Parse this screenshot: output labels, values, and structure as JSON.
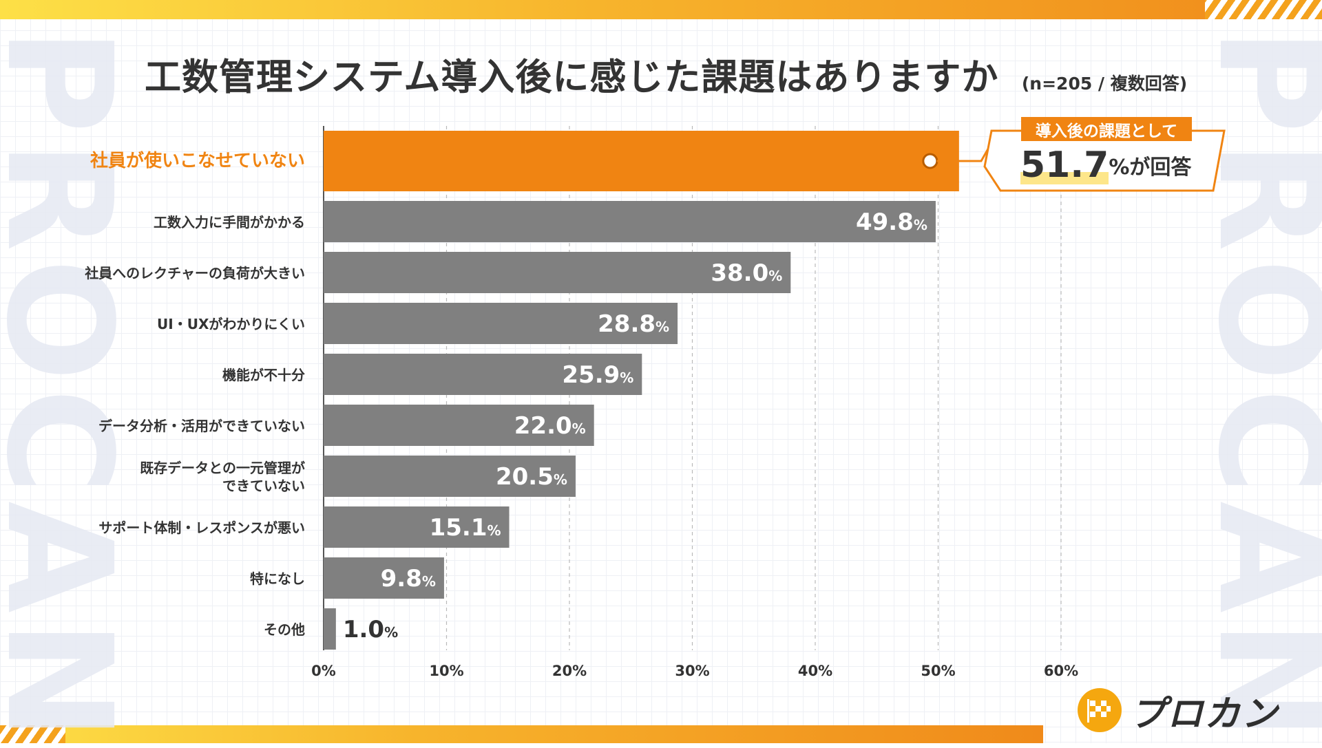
{
  "brand": {
    "watermark": "PROCAN",
    "logo_text": "プロカン"
  },
  "title": {
    "main": "工数管理システム導入後に感じた課題はありますか",
    "note": "(n=205 / 複数回答)"
  },
  "callout": {
    "tag": "導入後の課題として",
    "value": "51.7",
    "suffix": "%が回答"
  },
  "colors": {
    "highlight": "#f08412",
    "bar": "#808080",
    "text": "#333333",
    "callout_highlight": "#fde68a"
  },
  "chart_data": {
    "type": "bar",
    "orientation": "horizontal",
    "title": "工数管理システム導入後に感じた課題はありますか",
    "categories": [
      "社員が使いこなせていない",
      "工数入力に手間がかかる",
      "社員へのレクチャーの負荷が大きい",
      "UI・UXがわかりにくい",
      "機能が不十分",
      "データ分析・活用ができていない",
      "既存データとの一元管理が\nできていない",
      "サポート体制・レスポンスが悪い",
      "特になし",
      "その他"
    ],
    "values": [
      51.7,
      49.8,
      38.0,
      28.8,
      25.9,
      22.0,
      20.5,
      15.1,
      9.8,
      1.0
    ],
    "value_labels": [
      "",
      "49.8",
      "38.0",
      "28.8",
      "25.9",
      "22.0",
      "20.5",
      "15.1",
      "9.8",
      "1.0"
    ],
    "value_unit": "%",
    "highlight_index": 0,
    "xlim": [
      0,
      60
    ],
    "x_ticks": [
      "0%",
      "10%",
      "20%",
      "30%",
      "40%",
      "50%",
      "60%"
    ],
    "grid": true
  }
}
